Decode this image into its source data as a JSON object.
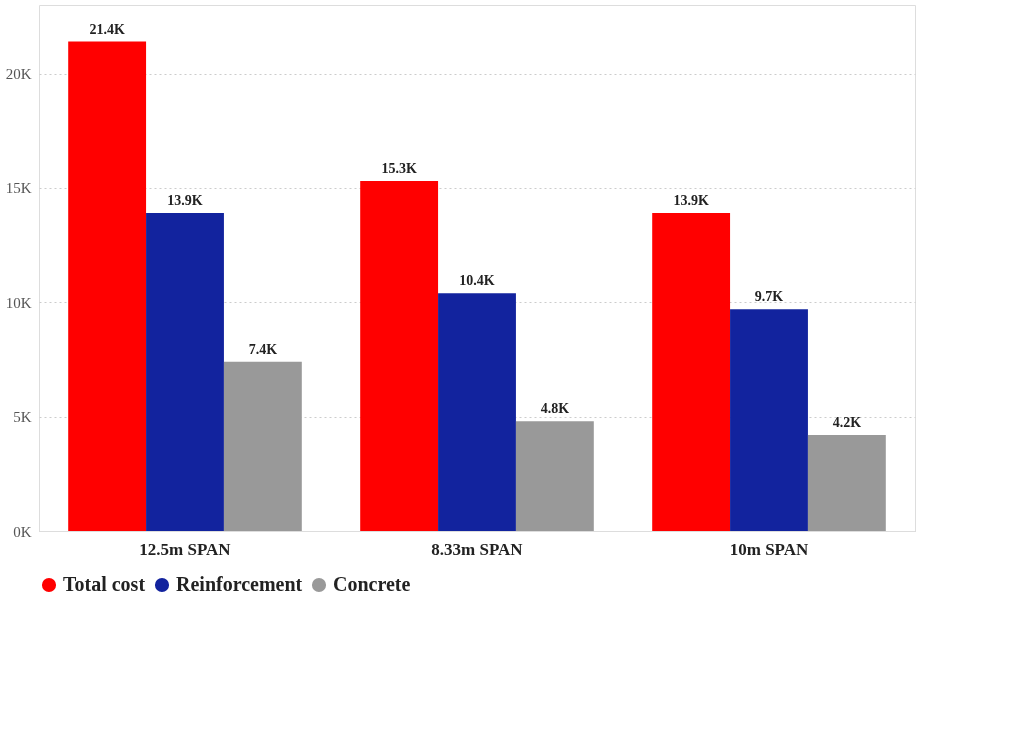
{
  "chart_data": {
    "type": "bar",
    "categories": [
      "12.5m SPAN",
      "8.33m SPAN",
      "10m SPAN"
    ],
    "series": [
      {
        "name": "Total cost",
        "color": "#ff0000",
        "values": [
          21400,
          15300,
          13900
        ],
        "value_labels": [
          "21.4K",
          "15.3K",
          "13.9K"
        ]
      },
      {
        "name": "Reinforcement",
        "color": "#12239e",
        "values": [
          13900,
          10400,
          9700
        ],
        "value_labels": [
          "13.9K",
          "10.4K",
          "9.7K"
        ]
      },
      {
        "name": "Concrete",
        "color": "#999999",
        "values": [
          7400,
          4800,
          4200
        ],
        "value_labels": [
          "7.4K",
          "4.8K",
          "4.2K"
        ]
      }
    ],
    "ylim": [
      0,
      23000
    ],
    "yticks": [
      {
        "value": 0,
        "label": "0K"
      },
      {
        "value": 5000,
        "label": "5K"
      },
      {
        "value": 10000,
        "label": "10K"
      },
      {
        "value": 15000,
        "label": "15K"
      },
      {
        "value": 20000,
        "label": "20K"
      }
    ],
    "grid": "y",
    "legend": "bottom"
  }
}
